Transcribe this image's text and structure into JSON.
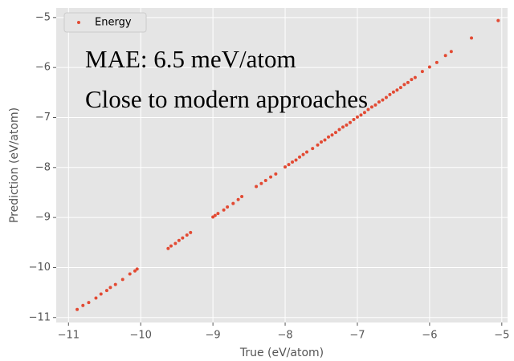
{
  "chart_data": {
    "type": "scatter",
    "xlabel": "True (eV/atom)",
    "ylabel": "Prediction (eV/atom)",
    "annotations": [
      "MAE: 6.5 meV/atom",
      "Close to modern approaches"
    ],
    "legend": "upper left",
    "grid": true,
    "series": [
      {
        "name": "Energy",
        "color": "#e24a33",
        "x": [
          -10.88,
          -10.8,
          -10.72,
          -10.62,
          -10.55,
          -10.47,
          -10.42,
          -10.35,
          -10.25,
          -10.15,
          -10.08,
          -10.05,
          -9.62,
          -9.58,
          -9.52,
          -9.47,
          -9.42,
          -9.36,
          -9.31,
          -9.0,
          -8.97,
          -8.93,
          -8.85,
          -8.8,
          -8.72,
          -8.65,
          -8.6,
          -8.4,
          -8.33,
          -8.27,
          -8.2,
          -8.13,
          -8.0,
          -7.95,
          -7.9,
          -7.85,
          -7.8,
          -7.75,
          -7.7,
          -7.62,
          -7.55,
          -7.5,
          -7.45,
          -7.4,
          -7.35,
          -7.3,
          -7.25,
          -7.2,
          -7.15,
          -7.1,
          -7.05,
          -7.0,
          -6.95,
          -6.9,
          -6.85,
          -6.8,
          -6.75,
          -6.7,
          -6.65,
          -6.6,
          -6.55,
          -6.5,
          -6.45,
          -6.4,
          -6.35,
          -6.3,
          -6.25,
          -6.2,
          -6.1,
          -6.0,
          -5.9,
          -5.78,
          -5.7,
          -5.42,
          -5.05
        ],
        "values": [
          -10.84,
          -10.76,
          -10.7,
          -10.61,
          -10.53,
          -10.46,
          -10.4,
          -10.34,
          -10.24,
          -10.13,
          -10.07,
          -10.03,
          -9.62,
          -9.57,
          -9.52,
          -9.46,
          -9.41,
          -9.35,
          -9.3,
          -8.99,
          -8.96,
          -8.92,
          -8.85,
          -8.79,
          -8.72,
          -8.64,
          -8.58,
          -8.38,
          -8.32,
          -8.26,
          -8.19,
          -8.13,
          -7.99,
          -7.94,
          -7.89,
          -7.85,
          -7.79,
          -7.74,
          -7.69,
          -7.62,
          -7.55,
          -7.49,
          -7.45,
          -7.39,
          -7.35,
          -7.3,
          -7.24,
          -7.19,
          -7.15,
          -7.1,
          -7.04,
          -6.99,
          -6.95,
          -6.9,
          -6.84,
          -6.79,
          -6.75,
          -6.69,
          -6.65,
          -6.6,
          -6.54,
          -6.49,
          -6.45,
          -6.4,
          -6.34,
          -6.3,
          -6.24,
          -6.2,
          -6.08,
          -5.99,
          -5.9,
          -5.76,
          -5.68,
          -5.41,
          -5.06
        ]
      }
    ],
    "xlim": [
      -11.17,
      -4.92
    ],
    "ylim": [
      -11.1,
      -4.81
    ],
    "xticks": [
      {
        "value": -11,
        "label": "−11"
      },
      {
        "value": -10,
        "label": "−10"
      },
      {
        "value": -9,
        "label": "−9"
      },
      {
        "value": -8,
        "label": "−8"
      },
      {
        "value": -7,
        "label": "−7"
      },
      {
        "value": -6,
        "label": "−6"
      },
      {
        "value": -5,
        "label": "−5"
      }
    ],
    "yticks": [
      {
        "value": -11,
        "label": "−11"
      },
      {
        "value": -10,
        "label": "−10"
      },
      {
        "value": -9,
        "label": "−9"
      },
      {
        "value": -8,
        "label": "−8"
      },
      {
        "value": -7,
        "label": "−7"
      },
      {
        "value": -6,
        "label": "−6"
      },
      {
        "value": -5,
        "label": "−5"
      }
    ]
  }
}
